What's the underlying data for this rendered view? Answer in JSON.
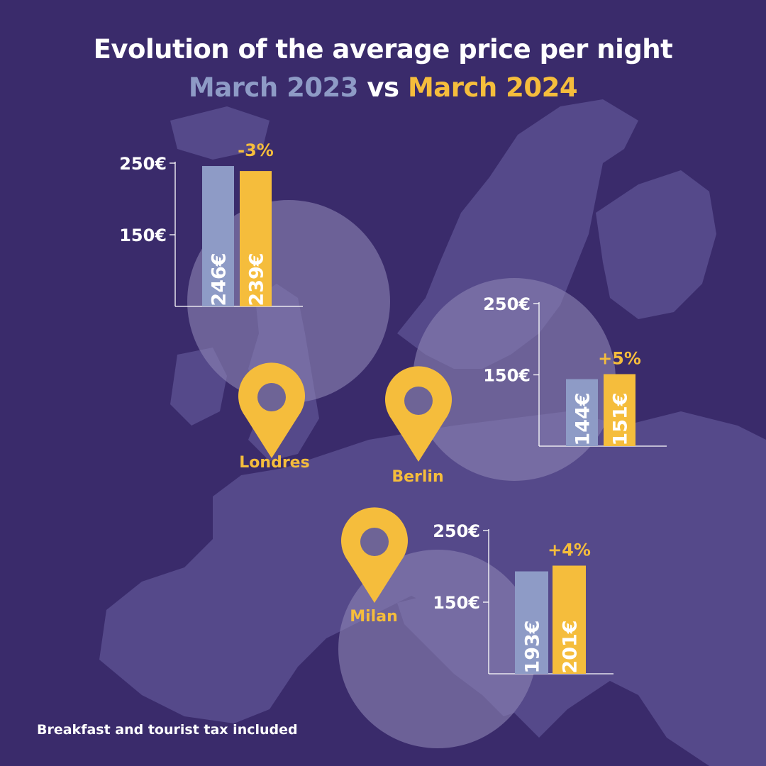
{
  "title": {
    "line1": "Evolution of the average price per night",
    "line2_a": "March 2023",
    "line2_vs": " vs ",
    "line2_b": "March 2024"
  },
  "footer": "Breakfast and tourist tax included",
  "colors": {
    "background": "#3a2b6b",
    "map_land": "#55498a",
    "circle": "#8a82b3",
    "march_2023": "#8e9bc6",
    "march_2024": "#f5bd3c",
    "text": "#ffffff"
  },
  "chart_data": [
    {
      "type": "bar",
      "city": "Londres",
      "series": [
        {
          "name": "March 2023",
          "value": 246,
          "label": "246€"
        },
        {
          "name": "March 2024",
          "value": 239,
          "label": "239€"
        }
      ],
      "change_label": "-3%",
      "y_ticks": [
        {
          "value": 150,
          "label": "150€"
        },
        {
          "value": 250,
          "label": "250€"
        }
      ],
      "ylim": [
        50,
        250
      ]
    },
    {
      "type": "bar",
      "city": "Berlin",
      "series": [
        {
          "name": "March 2023",
          "value": 144,
          "label": "144€"
        },
        {
          "name": "March 2024",
          "value": 151,
          "label": "151€"
        }
      ],
      "change_label": "+5%",
      "y_ticks": [
        {
          "value": 150,
          "label": "150€"
        },
        {
          "value": 250,
          "label": "250€"
        }
      ],
      "ylim": [
        50,
        250
      ]
    },
    {
      "type": "bar",
      "city": "Milan",
      "series": [
        {
          "name": "March 2023",
          "value": 193,
          "label": "193€"
        },
        {
          "name": "March 2024",
          "value": 201,
          "label": "201€"
        }
      ],
      "change_label": "+4%",
      "y_ticks": [
        {
          "value": 150,
          "label": "150€"
        },
        {
          "value": 250,
          "label": "250€"
        }
      ],
      "ylim": [
        50,
        250
      ]
    }
  ]
}
